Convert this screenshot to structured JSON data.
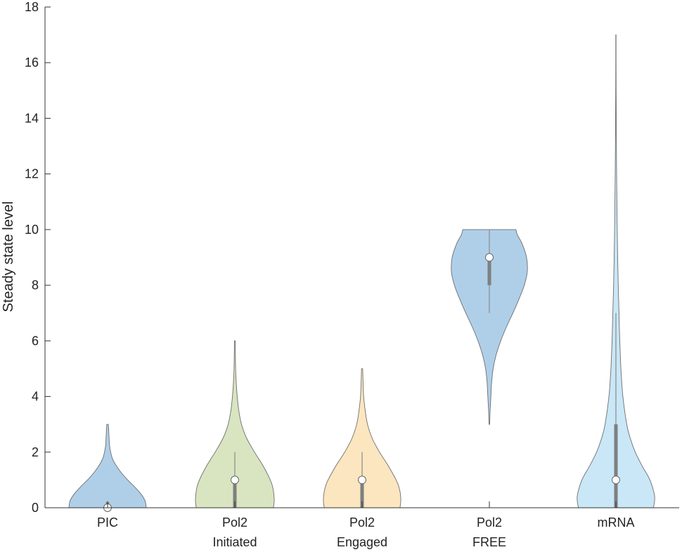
{
  "chart_data": {
    "type": "violin",
    "ylabel": "Steady state level",
    "ylim": [
      0,
      18
    ],
    "yticks": [
      0,
      2,
      4,
      6,
      8,
      10,
      12,
      14,
      16,
      18
    ],
    "grid": false,
    "categories": [
      {
        "lines": [
          "PIC"
        ],
        "color": "#afcfe9",
        "min": 0,
        "max": 3,
        "median": 0,
        "q1": 0,
        "q3": 0.2,
        "whisker_low": 0,
        "whisker_high": 0.25,
        "density": [
          [
            0,
            1.0
          ],
          [
            0.25,
            0.97
          ],
          [
            0.5,
            0.86
          ],
          [
            0.75,
            0.7
          ],
          [
            1.0,
            0.52
          ],
          [
            1.25,
            0.36
          ],
          [
            1.5,
            0.23
          ],
          [
            1.75,
            0.13
          ],
          [
            2.0,
            0.08
          ],
          [
            2.25,
            0.05
          ],
          [
            2.5,
            0.04
          ],
          [
            2.75,
            0.03
          ],
          [
            3.0,
            0.02
          ]
        ]
      },
      {
        "lines": [
          "Pol2",
          "Initiated"
        ],
        "color": "#d8e5c0",
        "min": 0,
        "max": 6,
        "median": 1,
        "q1": 0,
        "q3": 1,
        "whisker_low": 0,
        "whisker_high": 2,
        "density": [
          [
            0,
            0.98
          ],
          [
            0.25,
            1.0
          ],
          [
            0.5,
            0.99
          ],
          [
            0.75,
            0.96
          ],
          [
            1.0,
            0.9
          ],
          [
            1.5,
            0.72
          ],
          [
            2.0,
            0.5
          ],
          [
            2.5,
            0.3
          ],
          [
            3.0,
            0.17
          ],
          [
            3.5,
            0.1
          ],
          [
            4.0,
            0.06
          ],
          [
            4.5,
            0.035
          ],
          [
            5.0,
            0.02
          ],
          [
            5.5,
            0.015
          ],
          [
            6.0,
            0.01
          ]
        ]
      },
      {
        "lines": [
          "Pol2",
          "Engaged"
        ],
        "color": "#fbe6bf",
        "min": 0,
        "max": 5,
        "median": 1,
        "q1": 0,
        "q3": 1,
        "whisker_low": 0,
        "whisker_high": 2,
        "density": [
          [
            0,
            0.98
          ],
          [
            0.25,
            1.0
          ],
          [
            0.5,
            0.99
          ],
          [
            0.75,
            0.95
          ],
          [
            1.0,
            0.88
          ],
          [
            1.5,
            0.68
          ],
          [
            2.0,
            0.45
          ],
          [
            2.5,
            0.26
          ],
          [
            3.0,
            0.14
          ],
          [
            3.5,
            0.08
          ],
          [
            4.0,
            0.04
          ],
          [
            4.5,
            0.025
          ],
          [
            5.0,
            0.015
          ]
        ]
      },
      {
        "lines": [
          "Pol2",
          "FREE"
        ],
        "color": "#afcfe9",
        "min": 3,
        "max": 10,
        "median": 9,
        "q1": 8,
        "q3": 9,
        "whisker_low": 7,
        "whisker_high": 10,
        "density": [
          [
            3.0,
            0.01
          ],
          [
            3.5,
            0.02
          ],
          [
            4.0,
            0.04
          ],
          [
            4.5,
            0.06
          ],
          [
            5.0,
            0.1
          ],
          [
            5.5,
            0.18
          ],
          [
            6.0,
            0.3
          ],
          [
            6.5,
            0.45
          ],
          [
            7.0,
            0.62
          ],
          [
            7.5,
            0.78
          ],
          [
            8.0,
            0.92
          ],
          [
            8.5,
            1.0
          ],
          [
            9.0,
            0.98
          ],
          [
            9.5,
            0.86
          ],
          [
            9.8,
            0.74
          ],
          [
            10.0,
            0.7
          ]
        ]
      },
      {
        "lines": [
          "mRNA"
        ],
        "color": "#c9e7f7",
        "min": 0,
        "max": 17,
        "median": 1,
        "q1": 0,
        "q3": 3,
        "whisker_low": 0,
        "whisker_high": 7,
        "density": [
          [
            0,
            0.97
          ],
          [
            0.25,
            1.0
          ],
          [
            0.5,
            0.99
          ],
          [
            1.0,
            0.88
          ],
          [
            1.5,
            0.68
          ],
          [
            2.0,
            0.5
          ],
          [
            2.5,
            0.37
          ],
          [
            3.0,
            0.28
          ],
          [
            4.0,
            0.18
          ],
          [
            5.0,
            0.13
          ],
          [
            6.0,
            0.1
          ],
          [
            7.0,
            0.08
          ],
          [
            8.0,
            0.06
          ],
          [
            9.0,
            0.045
          ],
          [
            10.0,
            0.035
          ],
          [
            11.0,
            0.025
          ],
          [
            12.0,
            0.018
          ],
          [
            13.0,
            0.012
          ],
          [
            14.0,
            0.009
          ],
          [
            15.0,
            0.006
          ],
          [
            16.0,
            0.004
          ],
          [
            17.0,
            0.003
          ]
        ]
      }
    ]
  }
}
